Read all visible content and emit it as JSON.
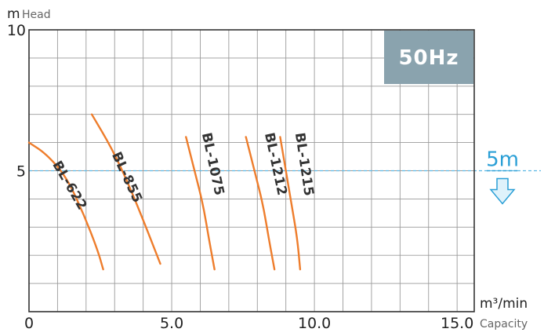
{
  "chart_data": {
    "type": "line",
    "xlabel": "Capacity",
    "xunit": "m³/min",
    "ylabel": "Head",
    "yunit": "m",
    "xlim": [
      0,
      15.6
    ],
    "ylim": [
      0,
      10
    ],
    "x_tick_labels": [
      "0",
      "5.0",
      "10.0",
      "15.0"
    ],
    "x_ticks": [
      0,
      5,
      10,
      15
    ],
    "y_tick_labels": [
      "5",
      "10"
    ],
    "y_ticks": [
      5,
      10
    ],
    "grid": true,
    "badge": "50Hz",
    "reference_line": {
      "y": 5,
      "label": "5m",
      "arrow": "down"
    },
    "series": [
      {
        "name": "BL-622",
        "x": [
          0,
          0.6,
          1.3,
          1.9,
          2.4,
          2.6
        ],
        "y": [
          6.0,
          5.6,
          4.8,
          3.5,
          2.2,
          1.5
        ],
        "label_at": [
          1.3,
          4.4
        ]
      },
      {
        "name": "BL-855",
        "x": [
          2.2,
          2.9,
          3.5,
          4.1,
          4.6
        ],
        "y": [
          7.0,
          5.8,
          4.5,
          3.0,
          1.7
        ],
        "label_at": [
          3.3,
          4.7
        ]
      },
      {
        "name": "BL-1075",
        "x": [
          5.5,
          5.8,
          6.1,
          6.3,
          6.5
        ],
        "y": [
          6.2,
          5.0,
          3.8,
          2.6,
          1.5
        ],
        "label_at": [
          6.3,
          5.2
        ]
      },
      {
        "name": "BL-1212",
        "x": [
          7.6,
          7.9,
          8.2,
          8.4,
          8.6
        ],
        "y": [
          6.2,
          5.0,
          3.8,
          2.6,
          1.5
        ],
        "label_at": [
          8.5,
          5.2
        ]
      },
      {
        "name": "BL-1215",
        "x": [
          8.8,
          9.0,
          9.2,
          9.4,
          9.5
        ],
        "y": [
          6.2,
          5.0,
          3.8,
          2.6,
          1.5
        ],
        "label_at": [
          9.5,
          5.2
        ]
      }
    ]
  }
}
